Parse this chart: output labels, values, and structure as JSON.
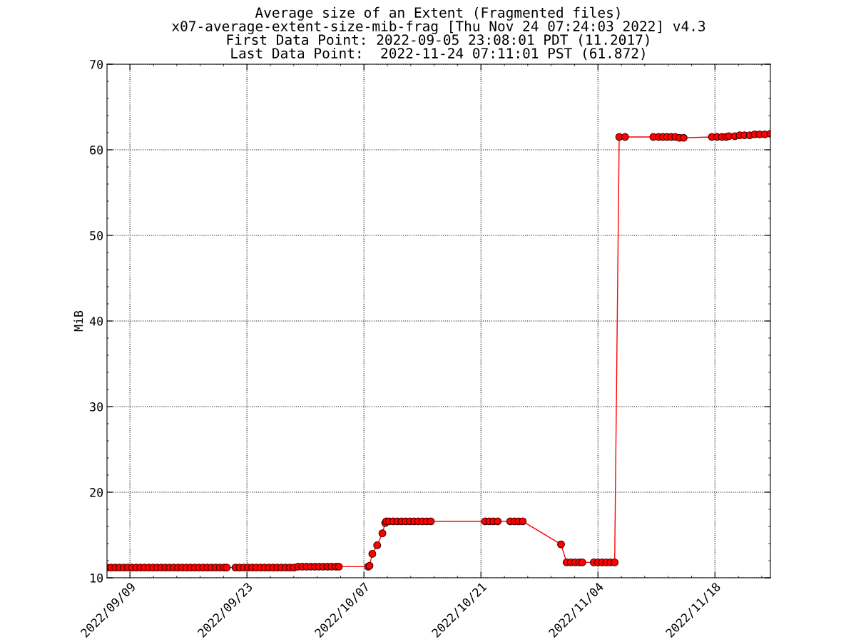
{
  "chart_data": {
    "type": "line",
    "title": "Average size of an Extent (Fragmented files)\nx07-average-extent-size-mib-frag [Thu Nov 24 07:24:03 2022] v4.3\nFirst Data Point: 2022-09-05 23:08:01 PDT (11.2017)\nLast Data Point:  2022-11-24 07:11:01 PST (61.872)",
    "ylabel": "MiB",
    "x": [
      "2022-09-06T06:08",
      "2022-09-06T18:00",
      "2022-09-07T06:00",
      "2022-09-07T18:00",
      "2022-09-08T06:00",
      "2022-09-08T18:00",
      "2022-09-09T06:00",
      "2022-09-09T18:00",
      "2022-09-10T06:00",
      "2022-09-10T18:00",
      "2022-09-11T06:00",
      "2022-09-11T18:00",
      "2022-09-12T06:00",
      "2022-09-12T18:00",
      "2022-09-13T06:00",
      "2022-09-13T18:00",
      "2022-09-14T06:00",
      "2022-09-14T18:00",
      "2022-09-15T06:00",
      "2022-09-15T18:00",
      "2022-09-16T06:00",
      "2022-09-16T18:00",
      "2022-09-17T06:00",
      "2022-09-17T18:00",
      "2022-09-18T06:00",
      "2022-09-18T18:00",
      "2022-09-19T06:00",
      "2022-09-19T18:00",
      "2022-09-20T06:00",
      "2022-09-20T14:00",
      "2022-09-21T15:00",
      "2022-09-22T03:00",
      "2022-09-22T15:00",
      "2022-09-23T03:00",
      "2022-09-23T15:00",
      "2022-09-24T03:00",
      "2022-09-24T15:00",
      "2022-09-25T03:00",
      "2022-09-25T15:00",
      "2022-09-26T03:00",
      "2022-09-26T15:00",
      "2022-09-27T03:00",
      "2022-09-27T15:00",
      "2022-09-28T03:00",
      "2022-09-28T15:00",
      "2022-09-29T03:00",
      "2022-09-29T15:00",
      "2022-09-30T03:00",
      "2022-09-30T15:00",
      "2022-10-01T03:00",
      "2022-10-01T15:00",
      "2022-10-02T03:00",
      "2022-10-02T15:00",
      "2022-10-03T03:00",
      "2022-10-03T15:00",
      "2022-10-04T00:00",
      "2022-10-07T12:00",
      "2022-10-07T16:00",
      "2022-10-08T00:00",
      "2022-10-08T14:00",
      "2022-10-09T05:00",
      "2022-10-09T13:00",
      "2022-10-09T16:00",
      "2022-10-10T00:00",
      "2022-10-10T12:00",
      "2022-10-11T00:00",
      "2022-10-11T12:00",
      "2022-10-12T00:00",
      "2022-10-12T12:00",
      "2022-10-13T00:00",
      "2022-10-13T12:00",
      "2022-10-14T00:00",
      "2022-10-14T12:00",
      "2022-10-15T00:00",
      "2022-10-21T12:00",
      "2022-10-22T00:00",
      "2022-10-22T12:00",
      "2022-10-23T00:00",
      "2022-10-24T12:00",
      "2022-10-25T00:00",
      "2022-10-25T12:00",
      "2022-10-26T00:00",
      "2022-10-30T14:00",
      "2022-10-31T06:00",
      "2022-10-31T18:00",
      "2022-11-01T06:00",
      "2022-11-01T18:00",
      "2022-11-02T03:00",
      "2022-11-03T12:00",
      "2022-11-04T00:00",
      "2022-11-04T12:00",
      "2022-11-05T00:00",
      "2022-11-05T12:00",
      "2022-11-06T00:00",
      "2022-11-06T13:00",
      "2022-11-07T06:00",
      "2022-11-10T15:00",
      "2022-11-11T06:00",
      "2022-11-11T18:00",
      "2022-11-12T06:00",
      "2022-11-12T18:00",
      "2022-11-13T06:00",
      "2022-11-13T18:00",
      "2022-11-14T06:00",
      "2022-11-17T15:00",
      "2022-11-18T06:00",
      "2022-11-18T20:00",
      "2022-11-19T08:00",
      "2022-11-19T16:00",
      "2022-11-20T09:00",
      "2022-11-20T23:00",
      "2022-11-21T13:00",
      "2022-11-22T04:00",
      "2022-11-22T18:00",
      "2022-11-23T08:00",
      "2022-11-23T23:00",
      "2022-11-24T15:11"
    ],
    "series": [
      {
        "color": "#ff0000",
        "values": [
          11.2,
          11.2,
          11.2,
          11.2,
          11.2,
          11.2,
          11.2,
          11.2,
          11.2,
          11.2,
          11.2,
          11.2,
          11.2,
          11.2,
          11.2,
          11.2,
          11.2,
          11.2,
          11.2,
          11.2,
          11.2,
          11.2,
          11.2,
          11.2,
          11.2,
          11.2,
          11.2,
          11.2,
          11.2,
          11.2,
          11.2,
          11.2,
          11.2,
          11.2,
          11.2,
          11.2,
          11.2,
          11.2,
          11.2,
          11.2,
          11.2,
          11.2,
          11.2,
          11.2,
          11.2,
          11.3,
          11.3,
          11.3,
          11.3,
          11.3,
          11.3,
          11.3,
          11.3,
          11.3,
          11.3,
          11.3,
          11.3,
          11.4,
          12.8,
          13.8,
          15.2,
          16.4,
          16.6,
          16.6,
          16.6,
          16.6,
          16.6,
          16.6,
          16.6,
          16.6,
          16.6,
          16.6,
          16.6,
          16.6,
          16.6,
          16.6,
          16.6,
          16.6,
          16.6,
          16.6,
          16.6,
          16.6,
          13.9,
          11.8,
          11.8,
          11.8,
          11.8,
          11.8,
          11.8,
          11.8,
          11.8,
          11.8,
          11.8,
          11.8,
          61.5,
          61.5,
          61.5,
          61.5,
          61.5,
          61.5,
          61.5,
          61.5,
          61.4,
          61.4,
          61.5,
          61.5,
          61.5,
          61.5,
          61.6,
          61.6,
          61.7,
          61.7,
          61.7,
          61.8,
          61.8,
          61.8,
          61.872
        ]
      }
    ],
    "xlim": [
      "2022-09-06T06:08",
      "2022-11-24T15:11"
    ],
    "xticks": [
      {
        "value": "2022-09-09",
        "label": "2022/09/09"
      },
      {
        "value": "2022-09-23",
        "label": "2022/09/23"
      },
      {
        "value": "2022-10-07",
        "label": "2022/10/07"
      },
      {
        "value": "2022-10-21",
        "label": "2022/10/21"
      },
      {
        "value": "2022-11-04",
        "label": "2022/11/04"
      },
      {
        "value": "2022-11-18",
        "label": "2022/11/18"
      }
    ],
    "ylim": [
      10,
      70
    ],
    "yticks": [
      10,
      20,
      30,
      40,
      50,
      60,
      70
    ],
    "grid": true,
    "marker": "circle",
    "line_style": "solid",
    "legend": false
  }
}
